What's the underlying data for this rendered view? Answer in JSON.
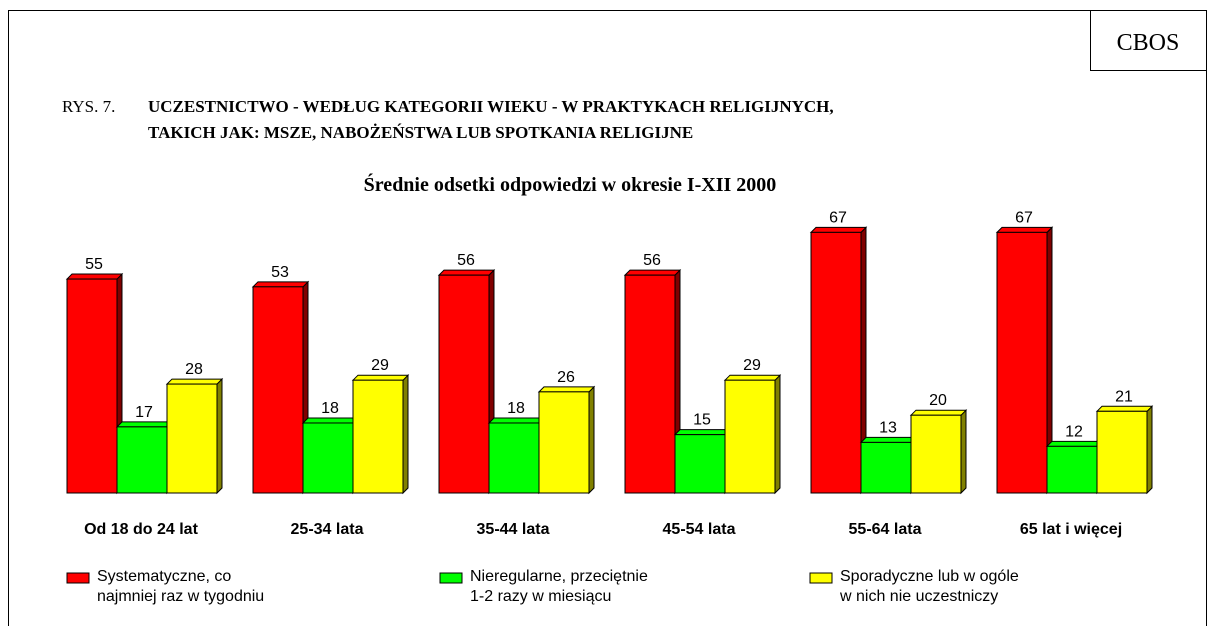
{
  "chart_data": {
    "type": "bar",
    "badge": "CBOS",
    "figure_label": "RYS. 7.",
    "title": [
      "UCZESTNICTWO - WEDŁUG KATEGORII WIEKU - W PRAKTYKACH RELIGIJNYCH,",
      "TAKICH JAK: MSZE, NABOŻEŃSTWA LUB SPOTKANIA RELIGIJNE"
    ],
    "subtitle": "Średnie odsetki odpowiedzi w okresie I-XII 2000",
    "categories": [
      "Od 18 do 24 lat",
      "25-34 lata",
      "35-44  lata",
      "45-54  lata",
      "55-64  lata",
      "65 lat i więcej"
    ],
    "series": [
      {
        "name": "Systematyczne, co najmniej raz w tygodniu",
        "color": "#ff0000",
        "side_color": "#800000",
        "values": [
          55,
          53,
          56,
          56,
          67,
          67
        ]
      },
      {
        "name": "Nieregularne, przeciętnie 1-2 razy w miesiącu",
        "color": "#00ff00",
        "side_color": "#008000",
        "values": [
          17,
          18,
          18,
          15,
          13,
          12
        ]
      },
      {
        "name": "Sporadyczne lub w ogóle w nich nie uczestniczy",
        "color": "#ffff00",
        "side_color": "#808000",
        "values": [
          28,
          29,
          26,
          29,
          20,
          21
        ]
      }
    ]
  }
}
